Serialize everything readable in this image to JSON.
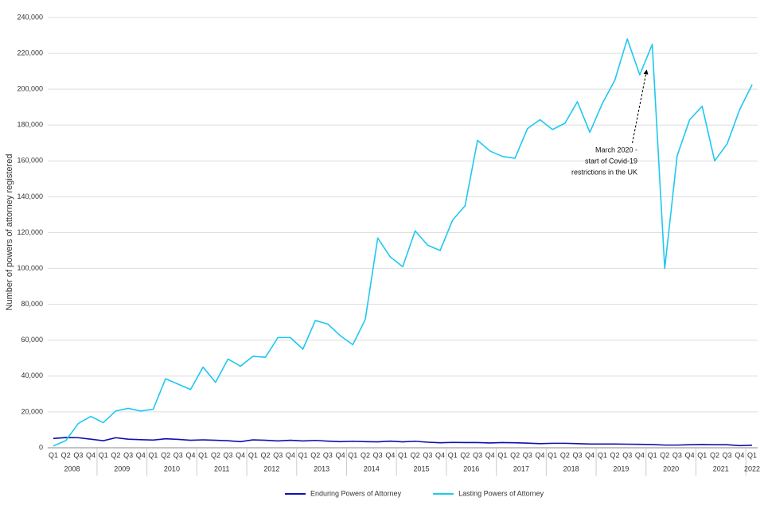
{
  "chart_data": {
    "type": "line",
    "y_label": "Number of powers of attorney registered",
    "categories": [
      "Q1",
      "Q2",
      "Q3",
      "Q4",
      "Q1",
      "Q2",
      "Q3",
      "Q4",
      "Q1",
      "Q2",
      "Q3",
      "Q4",
      "Q1",
      "Q2",
      "Q3",
      "Q4",
      "Q1",
      "Q2",
      "Q3",
      "Q4",
      "Q1",
      "Q2",
      "Q3",
      "Q4",
      "Q1",
      "Q2",
      "Q3",
      "Q4",
      "Q1",
      "Q2",
      "Q3",
      "Q4",
      "Q1",
      "Q2",
      "Q3",
      "Q4",
      "Q1",
      "Q2",
      "Q3",
      "Q4",
      "Q1",
      "Q2",
      "Q3",
      "Q4",
      "Q1",
      "Q2",
      "Q3",
      "Q4",
      "Q1",
      "Q2",
      "Q3",
      "Q4",
      "Q1",
      "Q2",
      "Q3",
      "Q4",
      "Q1"
    ],
    "years": [
      "2008",
      "2009",
      "2010",
      "2011",
      "2012",
      "2013",
      "2014",
      "2015",
      "2016",
      "2017",
      "2018",
      "2019",
      "2020",
      "2021",
      "2022"
    ],
    "series": [
      {
        "name": "Enduring Powers of Attorney",
        "color": "#1010b0",
        "values": [
          5200,
          5700,
          5600,
          4800,
          3900,
          5600,
          4800,
          4500,
          4300,
          5000,
          4700,
          4200,
          4400,
          4200,
          3900,
          3400,
          4400,
          4200,
          3800,
          4200,
          3800,
          4100,
          3700,
          3400,
          3600,
          3400,
          3300,
          3700,
          3300,
          3600,
          3100,
          2800,
          3000,
          2900,
          2900,
          2700,
          2900,
          2800,
          2600,
          2300,
          2500,
          2500,
          2300,
          2100,
          2100,
          2100,
          2000,
          1900,
          1800,
          1500,
          1500,
          1700,
          1800,
          1700,
          1700,
          1200,
          1400
        ]
      },
      {
        "name": "Lasting Powers of Attorney",
        "color": "#1ec8f0",
        "values": [
          1000,
          4000,
          13500,
          17500,
          14000,
          20500,
          22000,
          20500,
          21500,
          38500,
          35500,
          32500,
          45000,
          36500,
          49500,
          45500,
          51000,
          50500,
          61500,
          61500,
          55000,
          71000,
          69000,
          62500,
          57500,
          71500,
          117000,
          106500,
          101000,
          121000,
          113000,
          110000,
          127000,
          135000,
          171500,
          165500,
          162500,
          161500,
          178000,
          183000,
          177500,
          181000,
          193000,
          176000,
          192000,
          205000,
          228000,
          208000,
          225000,
          100000,
          163000,
          183000,
          190500,
          160000,
          169500,
          188500,
          202500
        ]
      }
    ],
    "annotation": [
      "March 2020 -",
      "start of Covid-19",
      "restrictions in the UK"
    ],
    "ylim": [
      0,
      240000
    ],
    "yticks": [
      0,
      {
        "value": 20000,
        "label": "20,000"
      },
      {
        "value": 40000,
        "label": "40,000"
      },
      {
        "value": 60000,
        "label": "60,000"
      },
      {
        "value": 80000,
        "label": "80,000"
      },
      {
        "value": 100000,
        "label": "100,000"
      },
      {
        "value": 120000,
        "label": "120,000"
      },
      {
        "value": 140000,
        "label": "140,000"
      },
      {
        "value": 160000,
        "label": "160,000"
      },
      {
        "value": 180000,
        "label": "180,000"
      },
      {
        "value": 200000,
        "label": "200,000"
      },
      {
        "value": 220000,
        "label": "220,000"
      },
      {
        "value": 240000,
        "label": "240,000"
      }
    ],
    "grid": true,
    "legend": "bottom"
  }
}
